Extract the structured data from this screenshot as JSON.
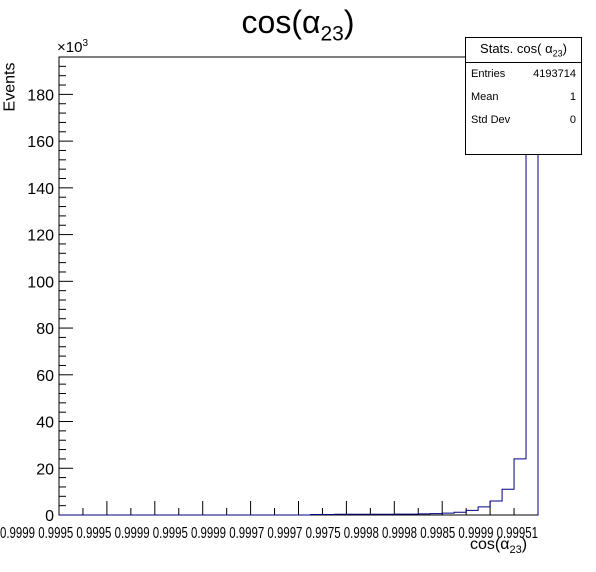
{
  "title": {
    "main": "cos(α",
    "sub": "23",
    "close": ")"
  },
  "ylabel": "Events",
  "xlabel": {
    "main": "cos(α",
    "sub": "23",
    "close": ")"
  },
  "multiplier": {
    "base": "×10",
    "exp": "3"
  },
  "stats": {
    "title": "Stats. cos( α",
    "title_sub": "23",
    "title_close": ")",
    "rows": [
      {
        "label": "Entries",
        "value": "4193714"
      },
      {
        "label": "Mean",
        "value": "1"
      },
      {
        "label": "Std Dev",
        "value": "0"
      }
    ]
  },
  "chart_data": {
    "type": "histogram",
    "title": "cos(α23)",
    "xlabel": "cos(α23)",
    "ylabel": "Events",
    "y_multiplier": 1000,
    "ylim": [
      0,
      196
    ],
    "y_ticks": [
      0,
      20,
      40,
      60,
      80,
      100,
      120,
      140,
      160,
      180
    ],
    "x_tick_labels_overlapping": "0.9999 0.9995 0.9995 0.9999 0.9995 0.9999 0.9997 0.9997 0.9975 0.9998 0.9998 0.9985 0.9999 0.99951",
    "bin_count": 40,
    "bins_nonzero_tail": [
      {
        "bin": 22,
        "value": 0.2
      },
      {
        "bin": 23,
        "value": 0.2
      },
      {
        "bin": 24,
        "value": 0.3
      },
      {
        "bin": 25,
        "value": 0.3
      },
      {
        "bin": 26,
        "value": 0.3
      },
      {
        "bin": 27,
        "value": 0.3
      },
      {
        "bin": 28,
        "value": 0.3
      },
      {
        "bin": 29,
        "value": 0.4
      },
      {
        "bin": 30,
        "value": 0.4
      },
      {
        "bin": 31,
        "value": 0.5
      },
      {
        "bin": 32,
        "value": 0.6
      },
      {
        "bin": 33,
        "value": 0.8
      },
      {
        "bin": 34,
        "value": 1.2
      },
      {
        "bin": 35,
        "value": 2
      },
      {
        "bin": 36,
        "value": 3.5
      },
      {
        "bin": 37,
        "value": 6
      },
      {
        "bin": 38,
        "value": 11
      },
      {
        "bin": 39,
        "value": 24
      },
      {
        "bin": 40,
        "value": 196
      }
    ],
    "line_color": "#000080"
  }
}
